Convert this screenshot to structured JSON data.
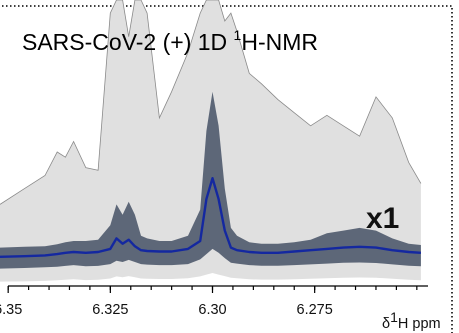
{
  "chart_data": {
    "type": "area",
    "title": "SARS-CoV-2 (+)  1D ",
    "title_sup": "1",
    "title_tail": "H-NMR",
    "xlabel_prefix": "δ",
    "xlabel_sup": "1",
    "xlabel_tail": "H ppm",
    "x_reversed": true,
    "xlim": [
      6.352,
      6.248
    ],
    "ylim": [
      0,
      100
    ],
    "scale_label": "x1",
    "x_ticks": [
      {
        "value": 6.35,
        "label": "6.35"
      },
      {
        "value": 6.325,
        "label": "6.325"
      },
      {
        "value": 6.3,
        "label": "6.30"
      },
      {
        "value": 6.275,
        "label": "6.275"
      }
    ],
    "x": [
      6.352,
      6.346,
      6.341,
      6.338,
      6.336,
      6.334,
      6.331,
      6.328,
      6.325,
      6.3235,
      6.322,
      6.3205,
      6.319,
      6.3175,
      6.316,
      6.313,
      6.31,
      6.306,
      6.303,
      6.3015,
      6.3,
      6.2985,
      6.297,
      6.2955,
      6.294,
      6.291,
      6.288,
      6.284,
      6.28,
      6.276,
      6.272,
      6.268,
      6.264,
      6.26,
      6.256,
      6.252,
      6.249
    ],
    "series": [
      {
        "values": [
          22,
          28,
          33,
          42,
          40,
          46,
          36,
          35,
          95,
          100,
          100,
          86,
          100,
          100,
          95,
          55,
          65,
          80,
          95,
          100,
          100,
          100,
          92,
          95,
          88,
          72,
          68,
          62,
          57,
          52,
          56,
          52,
          48,
          63,
          55,
          38,
          30
        ]
      },
      {
        "values": [
          5.5,
          5.8,
          6.0,
          6.8,
          7.5,
          8.0,
          8.0,
          8.5,
          14.0,
          22.0,
          18.0,
          23.0,
          18.0,
          10.0,
          9.0,
          8.0,
          8.0,
          10.0,
          20.0,
          50.0,
          65.0,
          52.0,
          28.0,
          13.0,
          10.0,
          7.5,
          7.0,
          7.0,
          7.5,
          8.5,
          11.0,
          12.0,
          13.0,
          12.0,
          9.0,
          7.0,
          6.5
        ]
      },
      {
        "values": [
          2.0,
          2.2,
          2.5,
          3.0,
          3.5,
          3.8,
          3.5,
          3.8,
          5.0,
          9.0,
          7.0,
          8.5,
          6.0,
          4.5,
          4.2,
          4.0,
          4.0,
          5.0,
          8.0,
          24.0,
          32.0,
          24.0,
          12.0,
          5.5,
          4.5,
          3.8,
          3.5,
          3.5,
          4.0,
          4.5,
          5.0,
          5.5,
          5.8,
          5.5,
          4.5,
          3.8,
          3.5
        ]
      },
      {
        "values": [
          -0.3,
          -0.1,
          0.2,
          0.5,
          0.8,
          1.0,
          0.7,
          0.9,
          2.0,
          3.5,
          2.5,
          3.5,
          2.5,
          1.5,
          1.2,
          1.0,
          1.0,
          1.8,
          4.5,
          12.0,
          18.0,
          13.0,
          6.0,
          2.0,
          1.5,
          0.8,
          0.6,
          0.6,
          0.9,
          1.3,
          1.8,
          2.1,
          2.3,
          2.0,
          1.3,
          0.7,
          0.5
        ]
      },
      {
        "values": [
          -2.5,
          -2.3,
          -2.0,
          -1.8,
          -1.5,
          -1.2,
          -1.6,
          -1.5,
          -0.8,
          0.5,
          0.0,
          0.8,
          0.0,
          -0.8,
          -1.0,
          -1.2,
          -1.2,
          -0.8,
          1.0,
          3.0,
          5.0,
          3.5,
          1.5,
          -0.3,
          -0.6,
          -1.2,
          -1.4,
          -1.4,
          -1.2,
          -0.9,
          -0.6,
          -0.3,
          -0.2,
          -0.4,
          -0.9,
          -1.4,
          -1.6
        ]
      },
      {
        "values": [
          -7.5,
          -7.4,
          -7.2,
          -7.0,
          -6.8,
          -6.6,
          -6.9,
          -6.8,
          -6.3,
          -5.5,
          -5.8,
          -5.4,
          -5.8,
          -6.3,
          -6.4,
          -6.5,
          -6.5,
          -6.2,
          -5.5,
          -4.8,
          -4.2,
          -4.8,
          -5.4,
          -6.0,
          -6.2,
          -6.6,
          -6.7,
          -6.7,
          -6.6,
          -6.4,
          -6.2,
          -6.0,
          -5.9,
          -6.0,
          -6.4,
          -6.8,
          -7.0
        ]
      }
    ],
    "colors": {
      "outer_band": "#e0e0e0",
      "outer_edge": "#8a8a8a",
      "inner_band": "#5d6778",
      "median_line": "#1428a0",
      "axis": "#000000"
    }
  }
}
